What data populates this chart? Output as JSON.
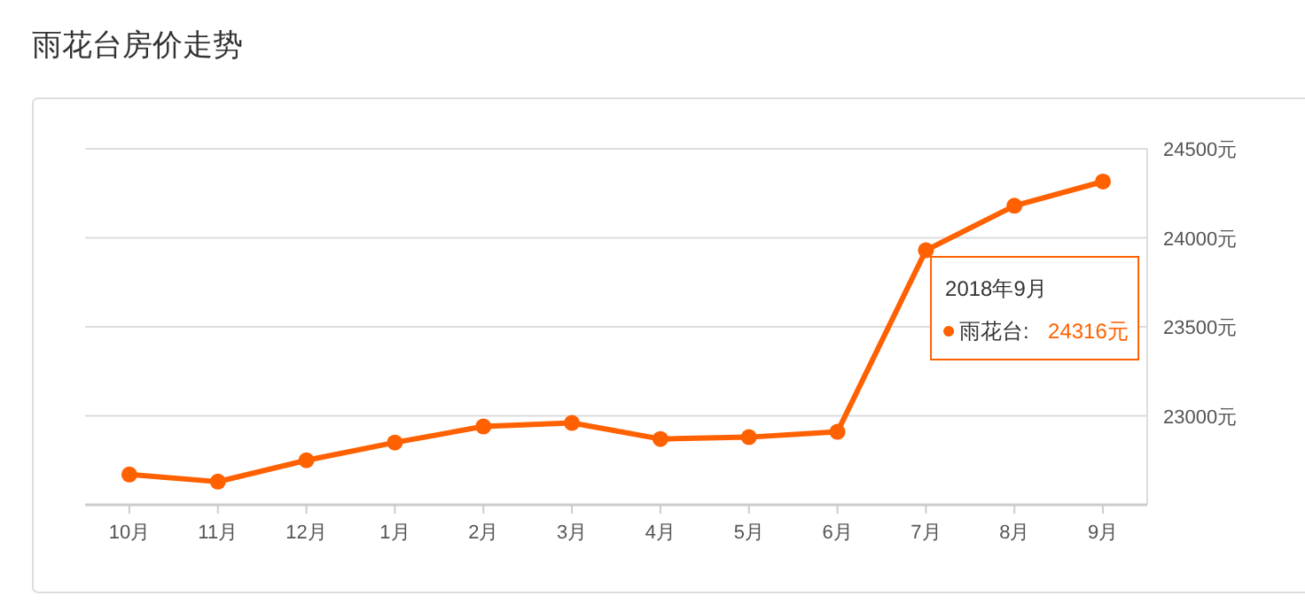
{
  "chart_data": {
    "type": "line",
    "title": "雨花台房价走势",
    "categories": [
      "10月",
      "11月",
      "12月",
      "1月",
      "2月",
      "3月",
      "4月",
      "5月",
      "6月",
      "7月",
      "8月",
      "9月"
    ],
    "series": [
      {
        "name": "雨花台:",
        "color": "#ff6000",
        "values": [
          22670,
          22630,
          22750,
          22850,
          22940,
          22960,
          22870,
          22880,
          22910,
          23930,
          24180,
          24316
        ]
      }
    ],
    "ylim": [
      22500,
      24500
    ],
    "yticks": [
      {
        "value": 23000,
        "label": "23000元"
      },
      {
        "value": 23500,
        "label": "23500元"
      },
      {
        "value": 24000,
        "label": "24000元"
      },
      {
        "value": 24500,
        "label": "24500元"
      }
    ],
    "grid": "y",
    "marker": "circle",
    "line_style": "solid",
    "annotations": [
      "2018年9月",
      "24316元"
    ]
  }
}
